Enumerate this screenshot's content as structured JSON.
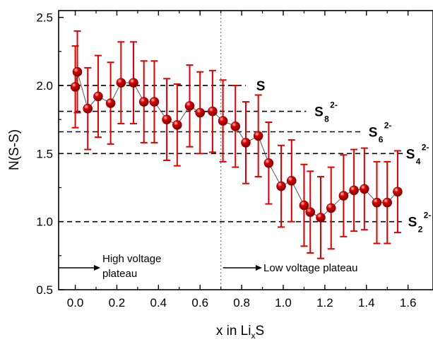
{
  "chart_data": {
    "type": "scatter",
    "xlabel": "x in Li",
    "xlabel_sub": "x",
    "xlabel_suffix": "S",
    "ylabel": "N(S-S)",
    "xlim": [
      -0.08,
      1.72
    ],
    "ylim": [
      0.5,
      2.55
    ],
    "x_ticks": [
      0.0,
      0.2,
      0.4,
      0.6,
      0.8,
      1.0,
      1.2,
      1.4,
      1.6
    ],
    "x_tick_labels": [
      "0.0",
      "0.2",
      "0.4",
      "0.6",
      "0.8",
      "1.0",
      "1.2",
      "1.4",
      "1.6"
    ],
    "y_ticks": [
      0.5,
      1.0,
      1.5,
      2.0,
      2.5
    ],
    "y_tick_labels": [
      "0.5",
      "1.0",
      "1.5",
      "2.0",
      "2.5"
    ],
    "grid": false,
    "marker_color": "#e00000",
    "errorbar_color": "#e00000",
    "line_color": "#555555",
    "series": [
      {
        "points": [
          {
            "x": 0.0,
            "y": 1.99,
            "err": 0.3
          },
          {
            "x": 0.01,
            "y": 2.1,
            "err": 0.3
          },
          {
            "x": 0.06,
            "y": 1.83,
            "err": 0.3
          },
          {
            "x": 0.11,
            "y": 1.92,
            "err": 0.3
          },
          {
            "x": 0.17,
            "y": 1.87,
            "err": 0.3
          },
          {
            "x": 0.22,
            "y": 2.02,
            "err": 0.3
          },
          {
            "x": 0.28,
            "y": 2.02,
            "err": 0.3
          },
          {
            "x": 0.33,
            "y": 1.88,
            "err": 0.3
          },
          {
            "x": 0.38,
            "y": 1.88,
            "err": 0.3
          },
          {
            "x": 0.44,
            "y": 1.75,
            "err": 0.3
          },
          {
            "x": 0.49,
            "y": 1.71,
            "err": 0.3
          },
          {
            "x": 0.55,
            "y": 1.85,
            "err": 0.3
          },
          {
            "x": 0.6,
            "y": 1.8,
            "err": 0.3
          },
          {
            "x": 0.66,
            "y": 1.81,
            "err": 0.3
          },
          {
            "x": 0.71,
            "y": 1.74,
            "err": 0.3
          },
          {
            "x": 0.77,
            "y": 1.7,
            "err": 0.3
          },
          {
            "x": 0.82,
            "y": 1.58,
            "err": 0.3
          },
          {
            "x": 0.88,
            "y": 1.63,
            "err": 0.3
          },
          {
            "x": 0.93,
            "y": 1.43,
            "err": 0.3
          },
          {
            "x": 0.99,
            "y": 1.26,
            "err": 0.3
          },
          {
            "x": 1.04,
            "y": 1.3,
            "err": 0.3
          },
          {
            "x": 1.1,
            "y": 1.12,
            "err": 0.3
          },
          {
            "x": 1.13,
            "y": 1.07,
            "err": 0.3
          },
          {
            "x": 1.18,
            "y": 1.03,
            "err": 0.3
          },
          {
            "x": 1.23,
            "y": 1.1,
            "err": 0.3
          },
          {
            "x": 1.29,
            "y": 1.19,
            "err": 0.3
          },
          {
            "x": 1.34,
            "y": 1.23,
            "err": 0.3
          },
          {
            "x": 1.39,
            "y": 1.24,
            "err": 0.3
          },
          {
            "x": 1.45,
            "y": 1.14,
            "err": 0.3
          },
          {
            "x": 1.5,
            "y": 1.14,
            "err": 0.3
          },
          {
            "x": 1.55,
            "y": 1.22,
            "err": 0.3
          }
        ]
      }
    ],
    "reference_lines": [
      {
        "y": 2.0,
        "label": "S",
        "sub": "",
        "sup": "",
        "x_end": 0.82,
        "label_x": 0.87
      },
      {
        "y": 1.81,
        "label": "S",
        "sub": "8",
        "sup": "2-",
        "x_end": 1.11,
        "label_x": 1.15
      },
      {
        "y": 1.66,
        "label": "S",
        "sub": "6",
        "sup": "2-",
        "x_end": 1.38,
        "label_x": 1.41
      },
      {
        "y": 1.5,
        "label": "S",
        "sub": "4",
        "sup": "2-",
        "x_end": 1.58,
        "label_x": 1.59
      },
      {
        "y": 1.0,
        "label": "S",
        "sub": "2",
        "sup": "2-",
        "x_end": 1.57,
        "label_x": 1.6
      }
    ],
    "divider_x": 0.7,
    "annotations": {
      "high": {
        "lines": [
          "High voltage",
          "plateau"
        ]
      },
      "low": {
        "text": "Low voltage plateau"
      }
    }
  }
}
